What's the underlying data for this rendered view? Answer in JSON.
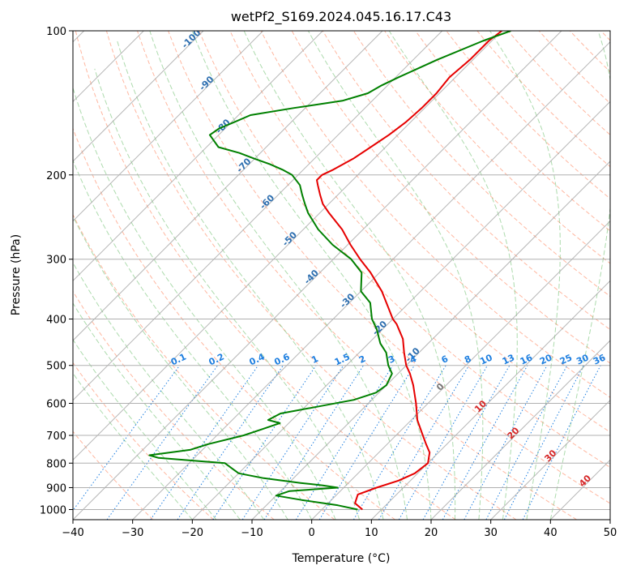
{
  "chart_data": {
    "type": "line",
    "title": "wetPf2_S169.2024.045.16.17.C43",
    "xlabel": "Temperature (°C)",
    "ylabel": "Pressure (hPa)",
    "xlim": [
      -40,
      50
    ],
    "ylim": [
      1050,
      100
    ],
    "y_scale": "log",
    "grid": true,
    "x_ticks": [
      -40,
      -30,
      -20,
      -10,
      0,
      10,
      20,
      30,
      40,
      50
    ],
    "y_ticks": [
      100,
      200,
      300,
      400,
      500,
      600,
      700,
      800,
      900,
      1000
    ],
    "skew_temperature_labels": [
      "-100",
      "-90",
      "-80",
      "-70",
      "-60",
      "-50",
      "-40",
      "-30",
      "-20",
      "-10",
      "0",
      "10",
      "20",
      "30",
      "40"
    ],
    "mixing_ratio_labels": [
      "0.1",
      "0.2",
      "0.4",
      "0.6",
      "1",
      "1.5",
      "2",
      "3",
      "4",
      "6",
      "8",
      "10",
      "13",
      "16",
      "20",
      "25",
      "30",
      "36"
    ],
    "colors": {
      "temperature": "#e60000",
      "dewpoint": "#008000",
      "isotherm": "#9e9e9e",
      "dry_adiabat": "#ff9f80",
      "moist_adiabat": "#5cb85c",
      "mixing_ratio": "#1e7fe0",
      "skew_label": "#2e6fb0",
      "warm_label": "#d62728",
      "zero_label": "#777777"
    },
    "series": [
      {
        "key": "temperature",
        "pressure": [
          1000,
          970,
          930,
          900,
          870,
          840,
          800,
          760,
          730,
          700,
          650,
          600,
          550,
          520,
          500,
          470,
          440,
          410,
          400,
          380,
          350,
          320,
          300,
          280,
          260,
          240,
          230,
          220,
          210,
          205,
          200,
          195,
          185,
          175,
          165,
          155,
          145,
          135,
          125,
          115,
          105,
          100
        ],
        "temp": [
          6.8,
          4.5,
          3.5,
          5.5,
          8,
          9.5,
          10,
          8.5,
          6.5,
          4.5,
          1.0,
          -2.0,
          -5.5,
          -8.0,
          -10.0,
          -12.5,
          -15.0,
          -18.5,
          -20.0,
          -22.5,
          -26.5,
          -31.5,
          -35.5,
          -39.5,
          -43.5,
          -48.5,
          -51.0,
          -53.0,
          -55.0,
          -56.0,
          -56.0,
          -55.0,
          -53.5,
          -52.5,
          -51.5,
          -50.8,
          -50.5,
          -50.5,
          -51.0,
          -50.5,
          -50.5,
          -50.0
        ]
      },
      {
        "key": "dewpoint",
        "pressure": [
          1000,
          980,
          955,
          935,
          915,
          900,
          890,
          880,
          860,
          840,
          820,
          800,
          780,
          770,
          750,
          730,
          700,
          680,
          660,
          650,
          630,
          610,
          590,
          570,
          550,
          520,
          500,
          470,
          450,
          420,
          400,
          370,
          350,
          320,
          300,
          280,
          260,
          240,
          230,
          220,
          210,
          200,
          195,
          190,
          185,
          180,
          175,
          165,
          160,
          155,
          150,
          145,
          140,
          135,
          130,
          125,
          115,
          105,
          100
        ],
        "dew": [
          6.0,
          2.0,
          -5.0,
          -10.0,
          -8.5,
          -1.0,
          -4.0,
          -8.0,
          -15.0,
          -20.0,
          -22.0,
          -24.0,
          -36.0,
          -38.0,
          -32.0,
          -30.0,
          -25.5,
          -23.5,
          -21.5,
          -24.0,
          -23.0,
          -18.0,
          -13.0,
          -10.5,
          -10.0,
          -11.0,
          -13.0,
          -15.5,
          -18.0,
          -21.0,
          -23.5,
          -26.5,
          -30.0,
          -33.0,
          -37.0,
          -42.5,
          -47.5,
          -52.0,
          -54.0,
          -56.0,
          -58.0,
          -61.0,
          -63.5,
          -66.5,
          -70.0,
          -73.5,
          -78.0,
          -81.5,
          -81.0,
          -79.5,
          -78.0,
          -72.0,
          -65.0,
          -62.0,
          -61.0,
          -59.5,
          -56.0,
          -51.5,
          -48.5
        ]
      }
    ]
  }
}
